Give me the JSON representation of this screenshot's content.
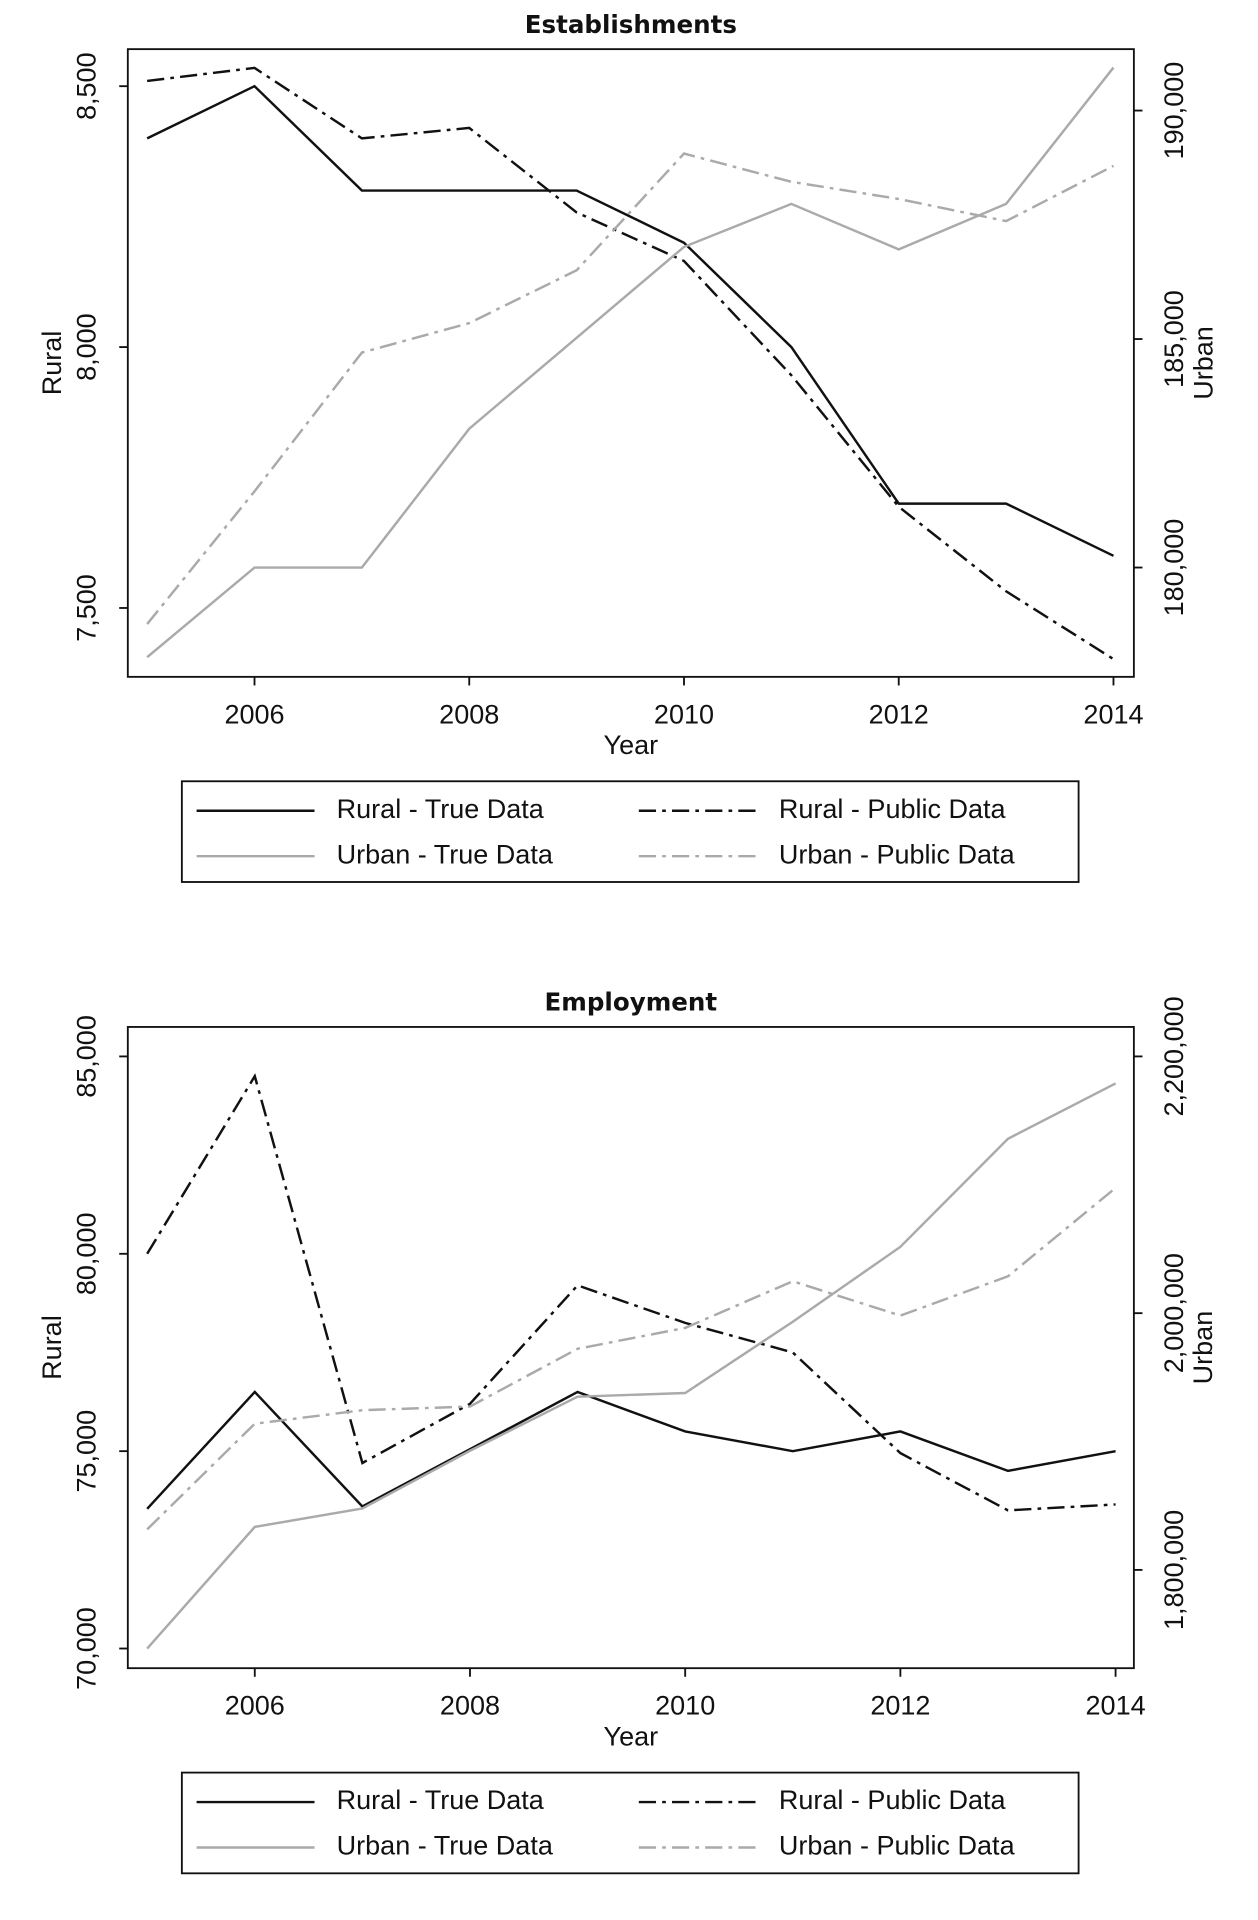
{
  "chart_data": [
    {
      "type": "line",
      "title": "Establishments",
      "x_label": "Year",
      "y_label": "Rural",
      "y2_label": "Urban",
      "x": [
        2005,
        2006,
        2007,
        2008,
        2009,
        2010,
        2011,
        2012,
        2013,
        2014
      ],
      "xlim": [
        2004.82,
        2014.19
      ],
      "xticks": [
        2006,
        2008,
        2010,
        2012,
        2014
      ],
      "ylim": [
        7368,
        8571
      ],
      "yticks": [
        {
          "value": 7500,
          "label": "7,500"
        },
        {
          "value": 8000,
          "label": "8,000"
        },
        {
          "value": 8500,
          "label": "8,500"
        }
      ],
      "y2lim": [
        177608,
        191344
      ],
      "y2ticks": [
        {
          "value": 180000,
          "label": "180,000"
        },
        {
          "value": 185000,
          "label": "185,000"
        },
        {
          "value": 190000,
          "label": "190,000"
        }
      ],
      "legend": "bottom",
      "series": [
        {
          "name": "Rural - True Data",
          "color": "#111111",
          "style": "solid",
          "axis": "y",
          "values": [
            8400,
            8500,
            8300,
            8300,
            8300,
            8200,
            8000,
            7700,
            7700,
            7600
          ]
        },
        {
          "name": "Rural - Public Data",
          "color": "#111111",
          "style": "dashdot",
          "axis": "y",
          "values": [
            8510,
            8535,
            8400,
            8420,
            8258,
            8165,
            7946,
            7694,
            7532,
            7402
          ]
        },
        {
          "name": "Urban - True Data",
          "color": "#aaaaaa",
          "style": "solid",
          "axis": "y2",
          "values": [
            178038,
            180000,
            180000,
            183038,
            185027,
            187016,
            187957,
            186962,
            187957,
            190941
          ]
        },
        {
          "name": "Urban - Public Data",
          "color": "#aaaaaa",
          "style": "dashdot",
          "axis": "y2",
          "values": [
            178763,
            181667,
            184704,
            185349,
            186505,
            189059,
            188441,
            188065,
            187581,
            188790
          ]
        }
      ]
    },
    {
      "type": "line",
      "title": "Employment",
      "x_label": "Year",
      "y_label": "Rural",
      "y2_label": "Urban",
      "x": [
        2005,
        2006,
        2007,
        2008,
        2009,
        2010,
        2011,
        2012,
        2013,
        2014
      ],
      "xlim": [
        2004.82,
        2014.17
      ],
      "xticks": [
        2006,
        2008,
        2010,
        2012,
        2014
      ],
      "ylim": [
        69502,
        85747
      ],
      "yticks": [
        {
          "value": 70000,
          "label": "70,000"
        },
        {
          "value": 75000,
          "label": "75,000"
        },
        {
          "value": 80000,
          "label": "80,000"
        },
        {
          "value": 85000,
          "label": "85,000"
        }
      ],
      "y2lim": [
        1723445,
        2222967
      ],
      "y2ticks": [
        {
          "value": 1800000,
          "label": "1,800,000"
        },
        {
          "value": 2000000,
          "label": "2,000,000"
        },
        {
          "value": 2200000,
          "label": "2,200,000"
        }
      ],
      "legend": "bottom",
      "series": [
        {
          "name": "Rural - True Data",
          "color": "#111111",
          "style": "solid",
          "axis": "y",
          "values": [
            73540,
            76500,
            73600,
            75050,
            76500,
            75500,
            75000,
            75500,
            74500,
            75000
          ]
        },
        {
          "name": "Rural - Public Data",
          "color": "#111111",
          "style": "dashdot",
          "axis": "y",
          "values": [
            80000,
            84500,
            74700,
            76200,
            79200,
            78250,
            77500,
            74950,
            73500,
            73650
          ]
        },
        {
          "name": "Urban - True Data",
          "color": "#aaaaaa",
          "style": "solid",
          "axis": "y2",
          "values": [
            1738756,
            1833493,
            1847847,
            1892823,
            1934928,
            1937799,
            1993301,
            2051675,
            2135885,
            2178947
          ]
        },
        {
          "name": "Urban - Public Data",
          "color": "#aaaaaa",
          "style": "dashdot",
          "axis": "y2",
          "values": [
            1831579,
            1913876,
            1924402,
            1927273,
            1972249,
            1988517,
            2024880,
            1998086,
            2028708,
            2097608
          ]
        }
      ]
    }
  ]
}
